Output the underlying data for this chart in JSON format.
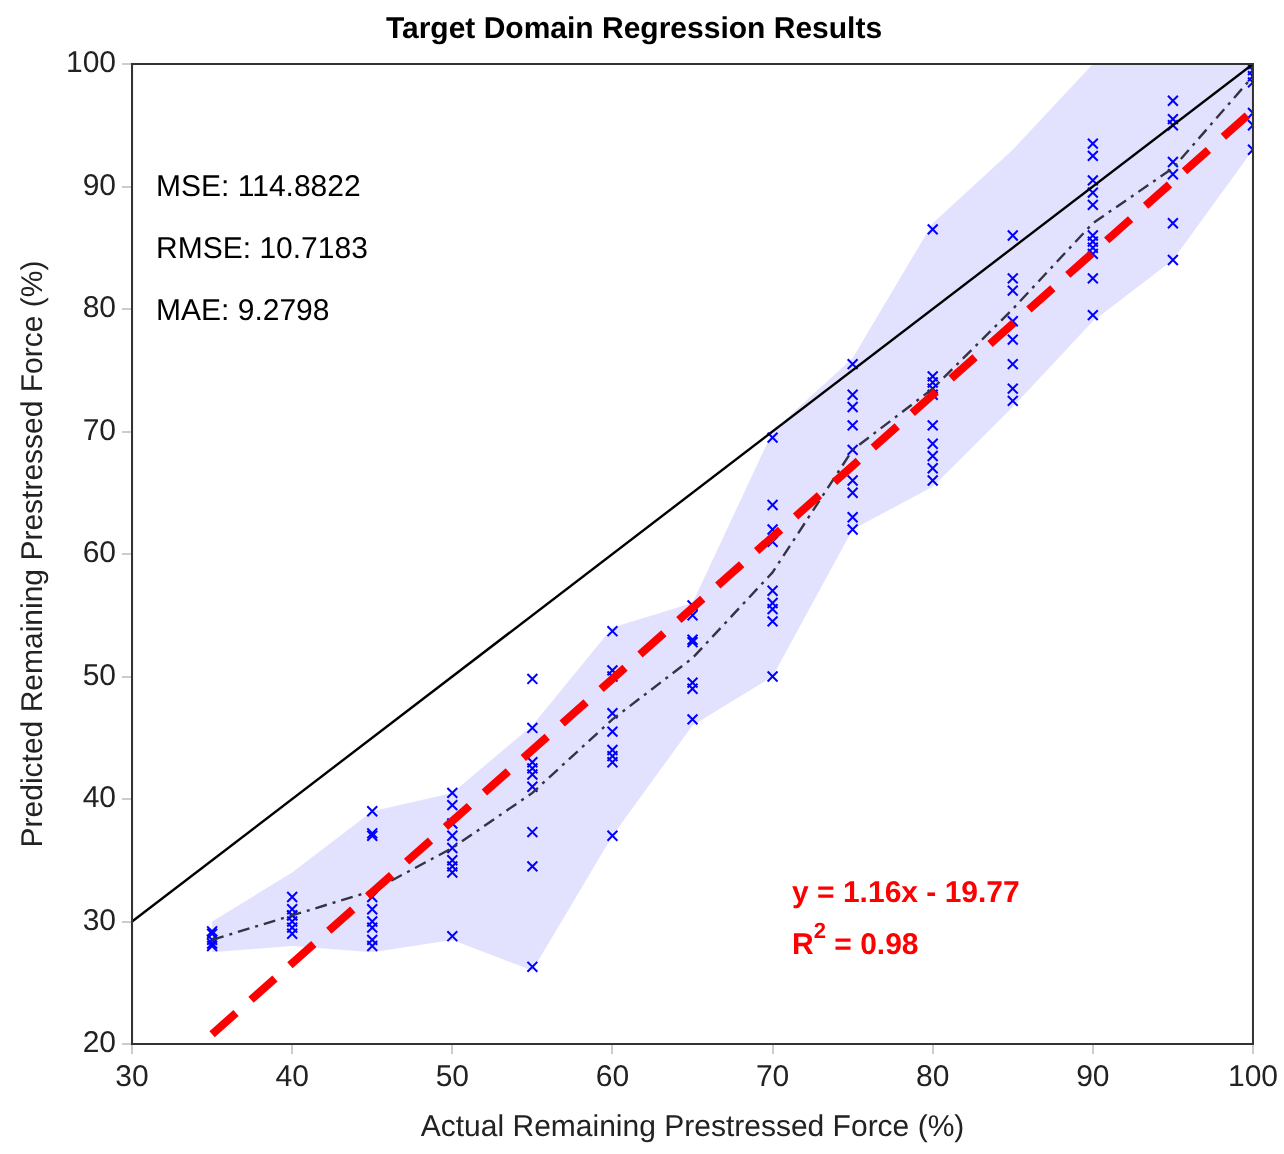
{
  "chart_data": {
    "type": "scatter",
    "title": "Target Domain Regression Results",
    "xlabel": "Actual Remaining Prestressed Force (%)",
    "ylabel": "Predicted Remaining Prestressed Force (%)",
    "xlim": [
      30,
      100
    ],
    "xticks": [
      30,
      40,
      50,
      60,
      70,
      80,
      90,
      100
    ],
    "ylim": [
      20,
      100
    ],
    "yticks": [
      20,
      30,
      40,
      50,
      60,
      70,
      80,
      90,
      100
    ],
    "grid": false,
    "legend": false,
    "annotations": [
      "MSE: 114.8822",
      "RMSE: 10.7183",
      "MAE: 9.2798",
      "y = 1.16x - 19.77",
      "R$^{2}$ = 0.98"
    ],
    "series": [
      {
        "type": "scatter",
        "color": "#0000ff",
        "marker": "cross",
        "x": [
          35,
          35,
          35,
          35,
          35,
          40,
          40,
          40,
          40,
          40,
          40,
          40,
          45,
          45,
          45,
          45,
          45,
          45,
          45,
          45,
          45,
          50,
          50,
          50,
          50,
          50,
          50,
          50,
          50,
          50,
          55,
          55,
          55,
          55,
          55,
          55,
          55,
          55,
          55,
          60,
          60,
          60,
          60,
          60,
          60,
          60,
          60,
          60,
          65,
          65,
          65,
          65,
          65,
          65,
          65,
          70,
          70,
          70,
          70,
          70,
          70,
          70,
          70,
          70,
          75,
          75,
          75,
          75,
          75,
          75,
          75,
          75,
          75,
          80,
          80,
          80,
          80,
          80,
          80,
          80,
          80,
          80,
          80,
          85,
          85,
          85,
          85,
          85,
          85,
          85,
          85,
          90,
          90,
          90,
          90,
          90,
          90,
          90,
          90,
          90,
          90,
          90,
          95,
          95,
          95,
          95,
          95,
          95,
          95,
          100,
          100,
          100,
          100,
          100,
          100,
          100
        ],
        "values": [
          28,
          28.5,
          29,
          29.2,
          28.2,
          32,
          31,
          30.5,
          30,
          29.5,
          30.5,
          29,
          39,
          37.2,
          37,
          32,
          31,
          30,
          29.5,
          28.5,
          28,
          40.5,
          39.5,
          38,
          37,
          36,
          35,
          34.5,
          34,
          28.8,
          49.8,
          45.8,
          43,
          42.5,
          42,
          41,
          37.3,
          34.5,
          26.3,
          53.7,
          50.5,
          50,
          47,
          45.5,
          44,
          43.5,
          43,
          37,
          55.8,
          55,
          53,
          52.8,
          49.5,
          49,
          46.5,
          69.5,
          64,
          62,
          61,
          57,
          56,
          55.5,
          54.5,
          50,
          75.5,
          73,
          72,
          70.5,
          68.5,
          66,
          65,
          63,
          62,
          86.5,
          74.5,
          74,
          73.5,
          73,
          70.5,
          69,
          68,
          67,
          66,
          86,
          82.5,
          81.5,
          79,
          77.5,
          75.5,
          73.5,
          72.5,
          93.5,
          92.5,
          90.5,
          89.5,
          88.5,
          86,
          85.5,
          85,
          84.5,
          82.5,
          79.5,
          97,
          95.5,
          95,
          92,
          91,
          87,
          84,
          100,
          99.5,
          99,
          98.5,
          96,
          95,
          93
        ]
      },
      {
        "type": "line",
        "color": "#333344",
        "line_style": "dashed",
        "marker": "none",
        "x": [
          35,
          40,
          45,
          50,
          55,
          60,
          65,
          70,
          75,
          80,
          85,
          90,
          95,
          100
        ],
        "values": [
          28.5,
          30.5,
          32.5,
          36,
          40.5,
          46.5,
          51.5,
          58.5,
          68.5,
          73.5,
          80,
          87,
          91.5,
          99
        ],
        "lower": [
          27.5,
          28,
          27.5,
          28.5,
          26,
          37,
          46,
          50,
          62,
          65.5,
          72,
          79,
          84,
          93
        ],
        "upper": [
          30,
          34,
          39,
          40.5,
          46,
          54,
          56,
          70,
          76,
          87,
          93,
          100,
          100,
          100
        ]
      },
      {
        "type": "line",
        "color": "#000000",
        "line_style": "solid",
        "marker": "none",
        "x": [
          30,
          100
        ],
        "values": [
          30,
          100
        ]
      },
      {
        "type": "line",
        "color": "#ff0000",
        "line_style": "dashed",
        "marker": "none",
        "x": [
          35,
          100
        ],
        "values": [
          20.8,
          96.2
        ]
      }
    ]
  }
}
